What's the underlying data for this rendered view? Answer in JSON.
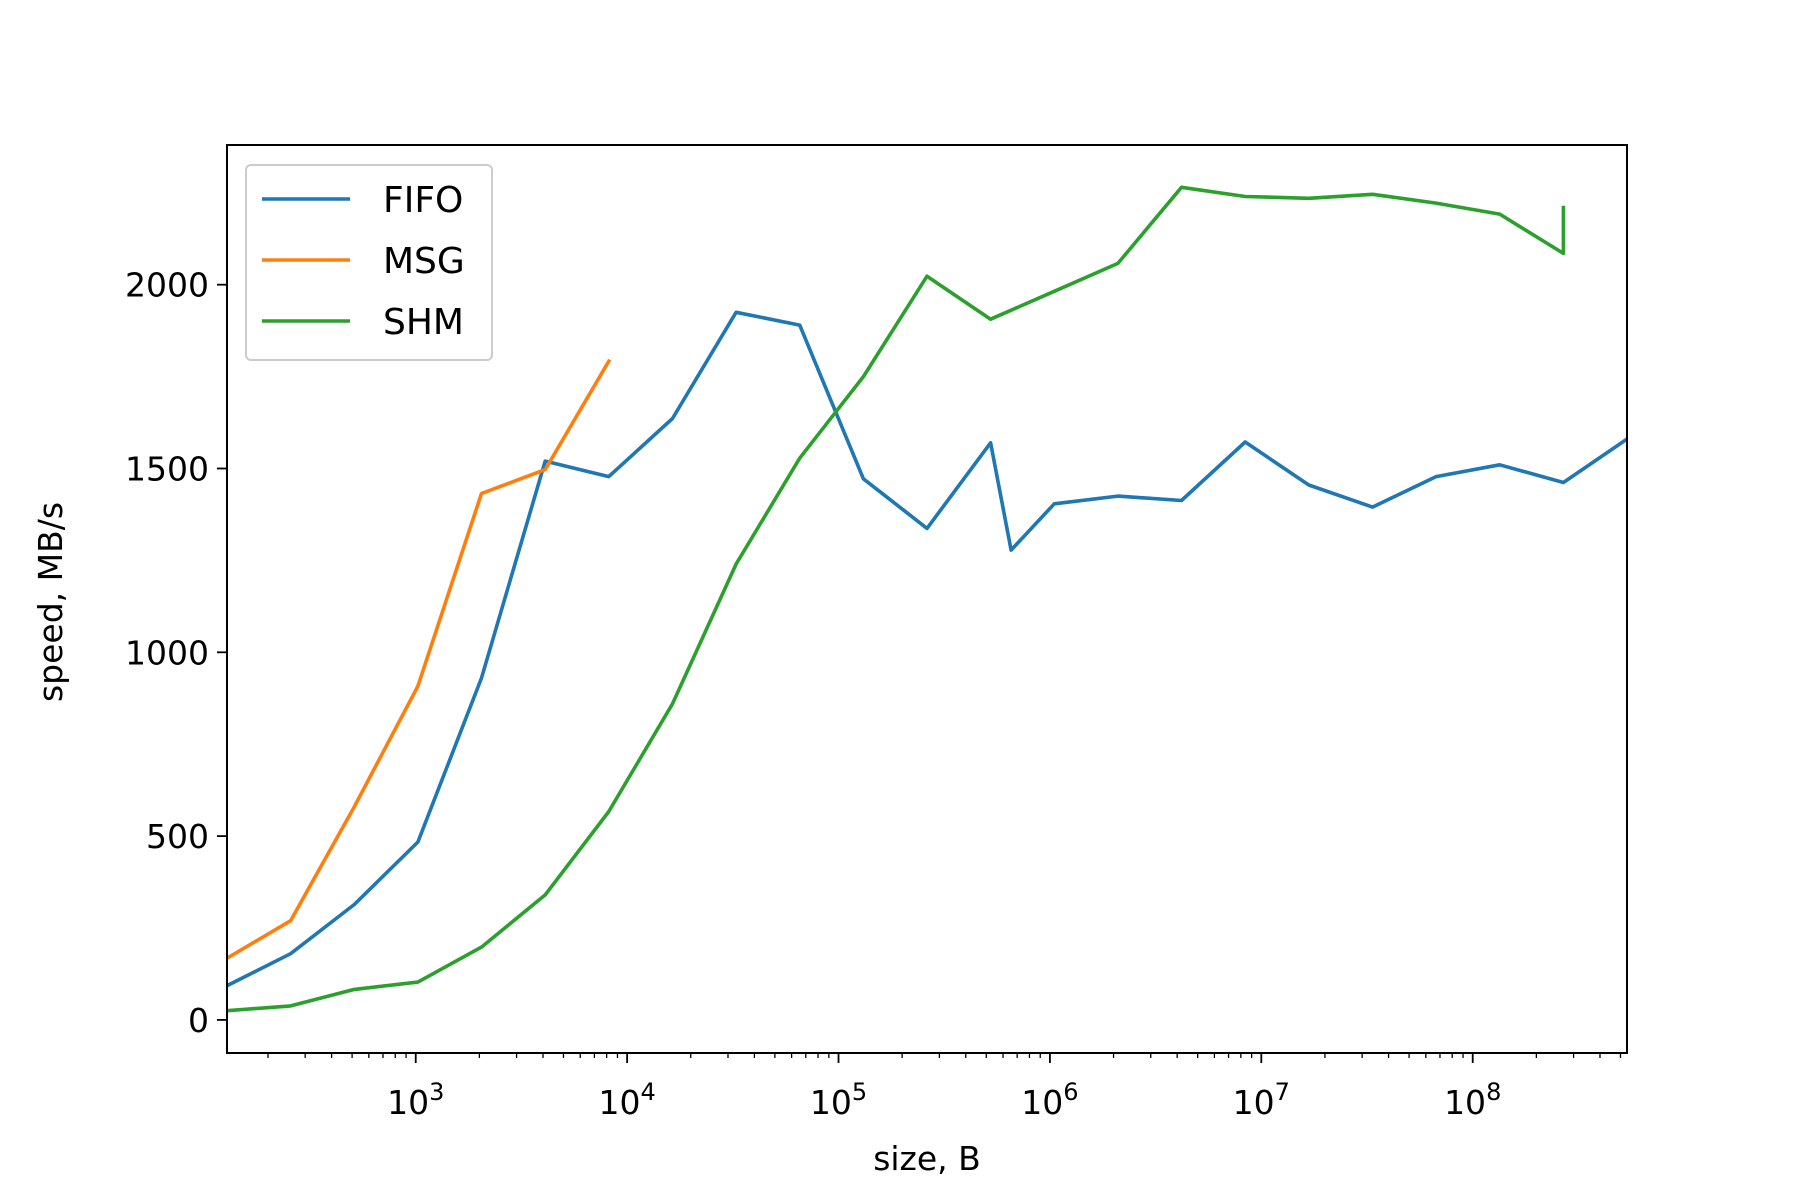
{
  "chart_data": {
    "type": "line",
    "title": "",
    "xlabel": "size, B",
    "ylabel": "speed, MB/s",
    "xscale": "log",
    "xlim": [
      128,
      536870912
    ],
    "ylim": [
      -90,
      2380
    ],
    "grid": false,
    "legend_position": "upper-left",
    "x_ticks": [
      {
        "value": 1000,
        "base": "10",
        "exp": "3"
      },
      {
        "value": 10000,
        "base": "10",
        "exp": "4"
      },
      {
        "value": 100000,
        "base": "10",
        "exp": "5"
      },
      {
        "value": 1000000,
        "base": "10",
        "exp": "6"
      },
      {
        "value": 10000000,
        "base": "10",
        "exp": "7"
      },
      {
        "value": 100000000,
        "base": "10",
        "exp": "8"
      }
    ],
    "y_ticks": [
      {
        "value": 0,
        "label": "0"
      },
      {
        "value": 500,
        "label": "500"
      },
      {
        "value": 1000,
        "label": "1000"
      },
      {
        "value": 1500,
        "label": "1500"
      },
      {
        "value": 2000,
        "label": "2000"
      }
    ],
    "series": [
      {
        "name": "FIFO",
        "color": "#1f77b4",
        "points": [
          [
            128,
            93
          ],
          [
            256,
            180
          ],
          [
            512,
            314
          ],
          [
            1024,
            484
          ],
          [
            2048,
            930
          ],
          [
            4096,
            1520
          ],
          [
            8192,
            1478
          ],
          [
            16384,
            1636
          ],
          [
            32768,
            1925
          ],
          [
            65536,
            1890
          ],
          [
            131072,
            1472
          ],
          [
            262144,
            1337
          ],
          [
            524288,
            1570
          ],
          [
            655360,
            1278
          ],
          [
            1048576,
            1404
          ],
          [
            2097152,
            1425
          ],
          [
            4194304,
            1413
          ],
          [
            8388608,
            1572
          ],
          [
            16777216,
            1455
          ],
          [
            33554432,
            1395
          ],
          [
            67108864,
            1478
          ],
          [
            134217728,
            1510
          ],
          [
            268435456,
            1462
          ],
          [
            536870912,
            1580
          ]
        ]
      },
      {
        "name": "MSG",
        "color": "#ff7f0e",
        "points": [
          [
            128,
            168
          ],
          [
            256,
            270
          ],
          [
            512,
            580
          ],
          [
            1024,
            908
          ],
          [
            2048,
            1432
          ],
          [
            4096,
            1497
          ],
          [
            8192,
            1792
          ]
        ]
      },
      {
        "name": "SHM",
        "color": "#2ca02c",
        "points": [
          [
            128,
            25
          ],
          [
            256,
            38
          ],
          [
            512,
            83
          ],
          [
            1024,
            103
          ],
          [
            2048,
            198
          ],
          [
            4096,
            340
          ],
          [
            8192,
            567
          ],
          [
            16384,
            860
          ],
          [
            32768,
            1240
          ],
          [
            65536,
            1528
          ],
          [
            131072,
            1750
          ],
          [
            262144,
            2023
          ],
          [
            524288,
            1906
          ],
          [
            1048576,
            1982
          ],
          [
            2097152,
            2058
          ],
          [
            4194304,
            2265
          ],
          [
            8388608,
            2240
          ],
          [
            16777216,
            2235
          ],
          [
            33554432,
            2246
          ],
          [
            67108864,
            2222
          ],
          [
            134217728,
            2192
          ],
          [
            268435456,
            2085
          ],
          [
            268435456,
            2210
          ]
        ]
      }
    ]
  }
}
